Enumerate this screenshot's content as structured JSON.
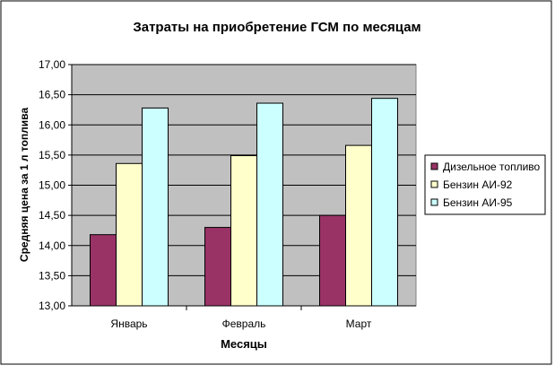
{
  "chart_data": {
    "type": "bar",
    "title": "Затраты на приобретение ГСМ по месяцам",
    "xlabel": "Месяцы",
    "ylabel": "Средняя цена за 1 л топлива",
    "categories": [
      "Январь",
      "Февраль",
      "Март"
    ],
    "ylim": [
      13.0,
      17.0
    ],
    "ytick_step": 0.5,
    "ytick_labels": [
      "13,00",
      "13,50",
      "14,00",
      "14,50",
      "15,00",
      "15,50",
      "16,00",
      "16,50",
      "17,00"
    ],
    "grid": true,
    "legend_position": "right",
    "plot_background": "#c0c0c0",
    "series": [
      {
        "name": "Дизельное топливо",
        "color": "#993366",
        "values": [
          14.18,
          14.3,
          14.5
        ]
      },
      {
        "name": "Бензин АИ-92",
        "color": "#ffffcc",
        "values": [
          15.36,
          15.49,
          15.66
        ]
      },
      {
        "name": "Бензин АИ-95",
        "color": "#ccffff",
        "values": [
          16.28,
          16.36,
          16.44
        ]
      }
    ]
  }
}
